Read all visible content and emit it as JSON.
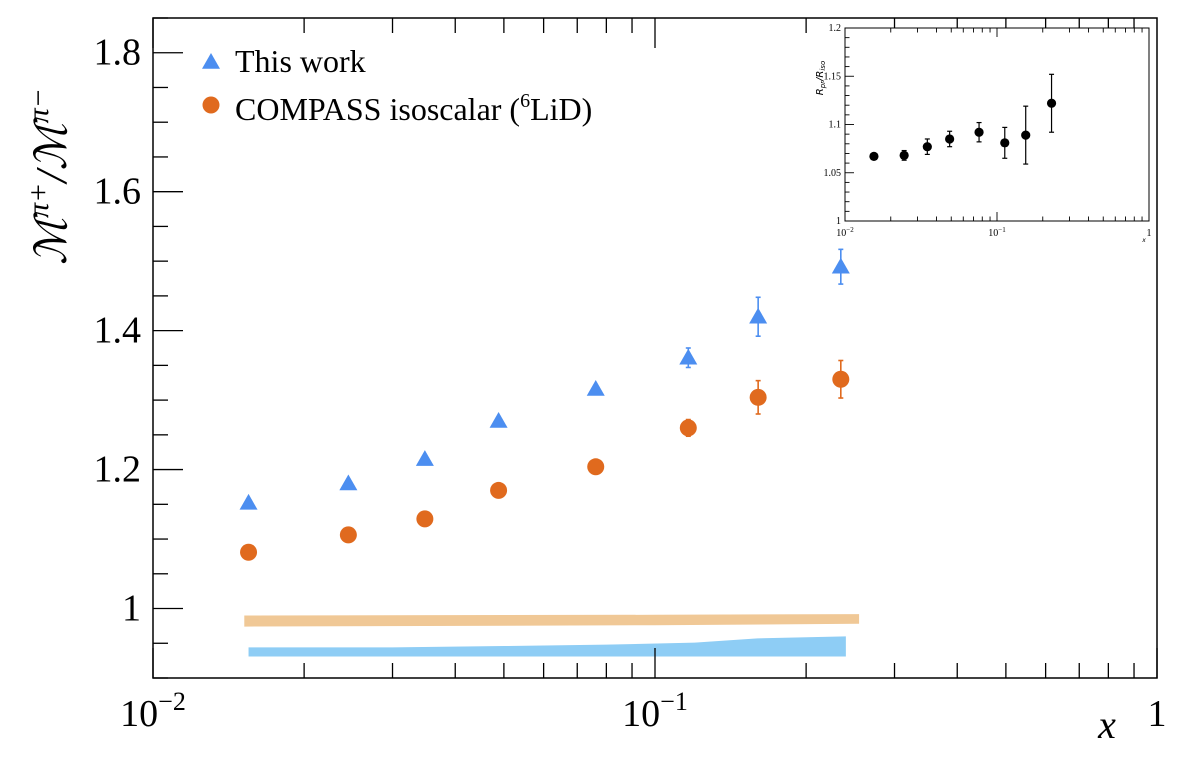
{
  "chart_data": [
    {
      "type": "scatter",
      "ylabel_parts": {
        "m": "ℳ",
        "plus": "π+",
        "slash": "/",
        "minus": "π−"
      },
      "xlabel": "x",
      "x_scale": "log",
      "xlim": [
        0.01,
        1
      ],
      "ylim": [
        0.9,
        1.85
      ],
      "x_tick_labels": [
        {
          "value": 0.01,
          "base": "10",
          "exp": "−2"
        },
        {
          "value": 0.1,
          "base": "10",
          "exp": "−1"
        },
        {
          "value": 1,
          "base": "1",
          "exp": ""
        }
      ],
      "y_tick_labels": [
        {
          "value": 1.0,
          "label": "1"
        },
        {
          "value": 1.2,
          "label": "1.2"
        },
        {
          "value": 1.4,
          "label": "1.4"
        },
        {
          "value": 1.6,
          "label": "1.6"
        },
        {
          "value": 1.8,
          "label": "1.8"
        }
      ],
      "legend": {
        "placement": "top-left",
        "entries": [
          {
            "marker": "triangle",
            "color": "#4c8ef0",
            "label": "This work"
          },
          {
            "marker": "circle",
            "color": "#e06a1e",
            "label_before": "COMPASS isoscalar (",
            "label_sup": "6",
            "label_after": "LiD)"
          }
        ]
      },
      "series": [
        {
          "name": "This work",
          "marker": "triangle",
          "color": "#4c8ef0",
          "x": [
            0.0155,
            0.0245,
            0.0348,
            0.0488,
            0.0762,
            0.1165,
            0.1605,
            0.2345
          ],
          "y": [
            1.152,
            1.18,
            1.215,
            1.27,
            1.316,
            1.361,
            1.42,
            1.492
          ],
          "err": [
            0.0,
            0.0,
            0.0,
            0.0,
            0.0,
            0.014,
            0.028,
            0.025
          ]
        },
        {
          "name": "COMPASS isoscalar (6LiD)",
          "marker": "circle",
          "color": "#e06a1e",
          "x": [
            0.0155,
            0.0245,
            0.0348,
            0.0488,
            0.0762,
            0.1165,
            0.1605,
            0.2345
          ],
          "y": [
            1.081,
            1.106,
            1.129,
            1.17,
            1.204,
            1.26,
            1.304,
            1.33
          ],
          "err": [
            0.0,
            0.0,
            0.0,
            0.0,
            0.0,
            0.012,
            0.024,
            0.027
          ]
        }
      ],
      "bands": [
        {
          "color": "#f0c896",
          "x": [
            0.0152,
            0.1,
            0.255
          ],
          "y_low": [
            0.974,
            0.976,
            0.978
          ],
          "y_high": [
            0.99,
            0.991,
            0.992
          ]
        },
        {
          "color": "#8ecdf5",
          "x": [
            0.0155,
            0.03,
            0.05,
            0.08,
            0.12,
            0.16,
            0.24
          ],
          "y_low": [
            0.931,
            0.931,
            0.931,
            0.931,
            0.931,
            0.931,
            0.931
          ],
          "y_high": [
            0.944,
            0.944,
            0.946,
            0.948,
            0.951,
            0.957,
            0.96
          ]
        }
      ]
    },
    {
      "type": "scatter",
      "ylabel_parts": {
        "r1": "R",
        "s1": "pr",
        "slash": "/",
        "r2": "R",
        "s2": "iso"
      },
      "xlabel": "x",
      "x_scale": "log",
      "xlim": [
        0.01,
        1
      ],
      "ylim": [
        1.0,
        1.2
      ],
      "x_tick_labels": [
        {
          "value": 0.01,
          "base": "10",
          "exp": "−2"
        },
        {
          "value": 0.1,
          "base": "10",
          "exp": "−1"
        },
        {
          "value": 1,
          "base": "1",
          "exp": ""
        }
      ],
      "y_tick_labels": [
        {
          "value": 1.0,
          "label": "1"
        },
        {
          "value": 1.05,
          "label": "1.05"
        },
        {
          "value": 1.1,
          "label": "1.1"
        },
        {
          "value": 1.15,
          "label": "1.15"
        },
        {
          "value": 1.2,
          "label": "1.2"
        }
      ],
      "series": [
        {
          "marker": "circle",
          "color": "#000000",
          "x": [
            0.0155,
            0.0245,
            0.0348,
            0.0488,
            0.0762,
            0.1125,
            0.1545,
            0.2285
          ],
          "y": [
            1.067,
            1.068,
            1.077,
            1.085,
            1.092,
            1.081,
            1.089,
            1.122
          ],
          "err": [
            0.0,
            0.005,
            0.008,
            0.008,
            0.01,
            0.016,
            0.03,
            0.03
          ]
        }
      ]
    }
  ]
}
